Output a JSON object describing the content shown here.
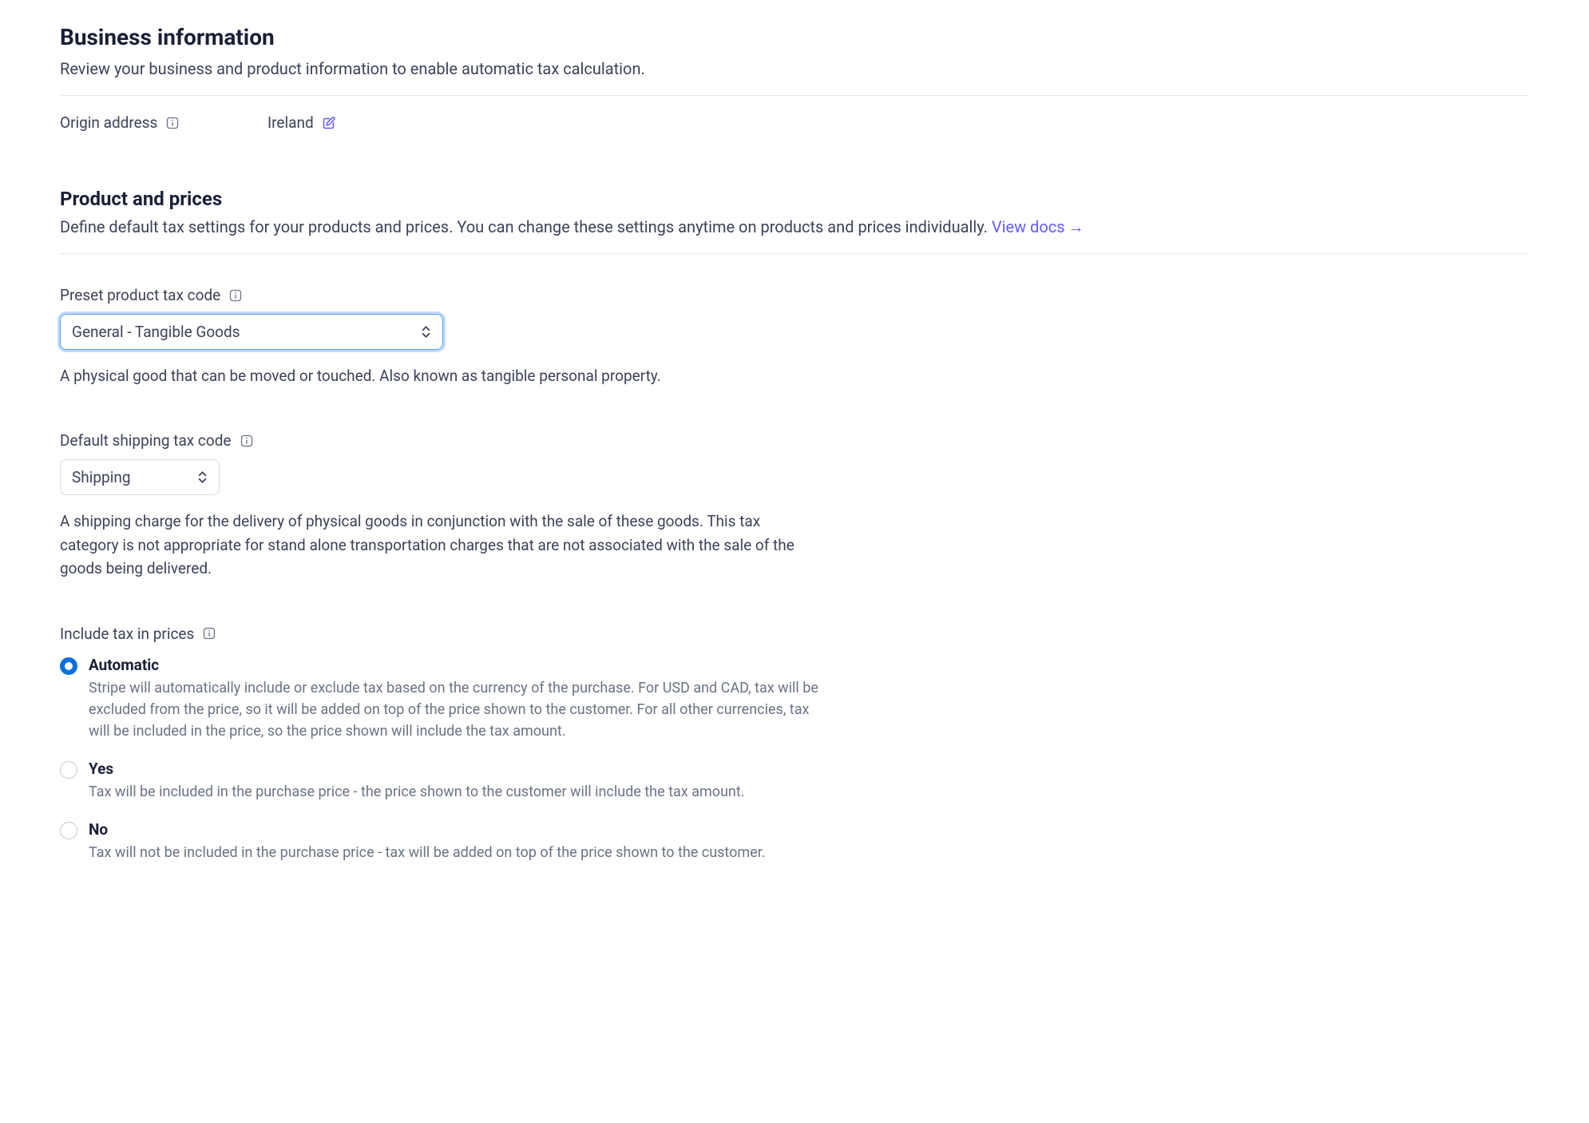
{
  "business": {
    "title": "Business information",
    "subtitle": "Review your business and product information to enable automatic tax calculation.",
    "origin_label": "Origin address",
    "origin_value": "Ireland"
  },
  "product": {
    "title": "Product and prices",
    "subtitle_prefix": "Define default tax settings for your products and prices. You can change these settings anytime on products and prices individually. ",
    "docs_link": "View docs"
  },
  "preset": {
    "label": "Preset product tax code",
    "selected": "General - Tangible Goods",
    "helper": "A physical good that can be moved or touched. Also known as tangible personal property."
  },
  "shipping": {
    "label": "Default shipping tax code",
    "selected": "Shipping",
    "helper": "A shipping charge for the delivery of physical goods in conjunction with the sale of these goods. This tax category is not appropriate for stand alone transportation charges that are not associated with the sale of the goods being delivered."
  },
  "include_tax": {
    "label": "Include tax in prices",
    "options": [
      {
        "title": "Automatic",
        "desc": "Stripe will automatically include or exclude tax based on the currency of the purchase. For USD and CAD, tax will be excluded from the price, so it will be added on top of the price shown to the customer. For all other currencies, tax will be included in the price, so the price shown will include the tax amount.",
        "selected": true
      },
      {
        "title": "Yes",
        "desc": "Tax will be included in the purchase price - the price shown to the customer will include the tax amount.",
        "selected": false
      },
      {
        "title": "No",
        "desc": "Tax will not be included in the purchase price - tax will be added on top of the price shown to the customer.",
        "selected": false
      }
    ]
  },
  "colors": {
    "primary_link": "#635bff",
    "radio_selected": "#0570de",
    "focus_ring": "#5b9cf8",
    "text_primary": "#1a1f36",
    "text_secondary": "#3c4257",
    "text_muted": "#6a7383",
    "border": "#e3e8ee"
  }
}
